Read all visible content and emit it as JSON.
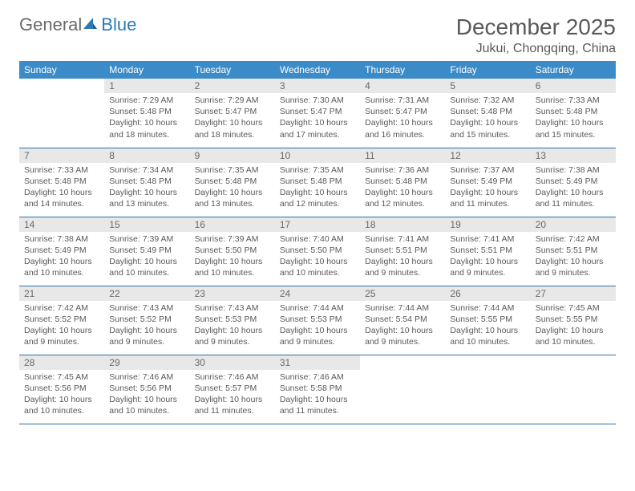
{
  "logo": {
    "part1": "General",
    "part2": "Blue"
  },
  "title": "December 2025",
  "location": "Jukui, Chongqing, China",
  "weekdays": [
    "Sunday",
    "Monday",
    "Tuesday",
    "Wednesday",
    "Thursday",
    "Friday",
    "Saturday"
  ],
  "colors": {
    "header_bg": "#3b8bc8",
    "header_text": "#ffffff",
    "daynum_bg": "#e8e8e8",
    "border": "#2a6fa8",
    "text": "#5a5a5a",
    "title": "#595959"
  },
  "weeks": [
    [
      {
        "empty": true
      },
      {
        "num": "1",
        "sunrise": "Sunrise: 7:29 AM",
        "sunset": "Sunset: 5:48 PM",
        "daylight": "Daylight: 10 hours and 18 minutes."
      },
      {
        "num": "2",
        "sunrise": "Sunrise: 7:29 AM",
        "sunset": "Sunset: 5:47 PM",
        "daylight": "Daylight: 10 hours and 18 minutes."
      },
      {
        "num": "3",
        "sunrise": "Sunrise: 7:30 AM",
        "sunset": "Sunset: 5:47 PM",
        "daylight": "Daylight: 10 hours and 17 minutes."
      },
      {
        "num": "4",
        "sunrise": "Sunrise: 7:31 AM",
        "sunset": "Sunset: 5:47 PM",
        "daylight": "Daylight: 10 hours and 16 minutes."
      },
      {
        "num": "5",
        "sunrise": "Sunrise: 7:32 AM",
        "sunset": "Sunset: 5:48 PM",
        "daylight": "Daylight: 10 hours and 15 minutes."
      },
      {
        "num": "6",
        "sunrise": "Sunrise: 7:33 AM",
        "sunset": "Sunset: 5:48 PM",
        "daylight": "Daylight: 10 hours and 15 minutes."
      }
    ],
    [
      {
        "num": "7",
        "sunrise": "Sunrise: 7:33 AM",
        "sunset": "Sunset: 5:48 PM",
        "daylight": "Daylight: 10 hours and 14 minutes."
      },
      {
        "num": "8",
        "sunrise": "Sunrise: 7:34 AM",
        "sunset": "Sunset: 5:48 PM",
        "daylight": "Daylight: 10 hours and 13 minutes."
      },
      {
        "num": "9",
        "sunrise": "Sunrise: 7:35 AM",
        "sunset": "Sunset: 5:48 PM",
        "daylight": "Daylight: 10 hours and 13 minutes."
      },
      {
        "num": "10",
        "sunrise": "Sunrise: 7:35 AM",
        "sunset": "Sunset: 5:48 PM",
        "daylight": "Daylight: 10 hours and 12 minutes."
      },
      {
        "num": "11",
        "sunrise": "Sunrise: 7:36 AM",
        "sunset": "Sunset: 5:48 PM",
        "daylight": "Daylight: 10 hours and 12 minutes."
      },
      {
        "num": "12",
        "sunrise": "Sunrise: 7:37 AM",
        "sunset": "Sunset: 5:49 PM",
        "daylight": "Daylight: 10 hours and 11 minutes."
      },
      {
        "num": "13",
        "sunrise": "Sunrise: 7:38 AM",
        "sunset": "Sunset: 5:49 PM",
        "daylight": "Daylight: 10 hours and 11 minutes."
      }
    ],
    [
      {
        "num": "14",
        "sunrise": "Sunrise: 7:38 AM",
        "sunset": "Sunset: 5:49 PM",
        "daylight": "Daylight: 10 hours and 10 minutes."
      },
      {
        "num": "15",
        "sunrise": "Sunrise: 7:39 AM",
        "sunset": "Sunset: 5:49 PM",
        "daylight": "Daylight: 10 hours and 10 minutes."
      },
      {
        "num": "16",
        "sunrise": "Sunrise: 7:39 AM",
        "sunset": "Sunset: 5:50 PM",
        "daylight": "Daylight: 10 hours and 10 minutes."
      },
      {
        "num": "17",
        "sunrise": "Sunrise: 7:40 AM",
        "sunset": "Sunset: 5:50 PM",
        "daylight": "Daylight: 10 hours and 10 minutes."
      },
      {
        "num": "18",
        "sunrise": "Sunrise: 7:41 AM",
        "sunset": "Sunset: 5:51 PM",
        "daylight": "Daylight: 10 hours and 9 minutes."
      },
      {
        "num": "19",
        "sunrise": "Sunrise: 7:41 AM",
        "sunset": "Sunset: 5:51 PM",
        "daylight": "Daylight: 10 hours and 9 minutes."
      },
      {
        "num": "20",
        "sunrise": "Sunrise: 7:42 AM",
        "sunset": "Sunset: 5:51 PM",
        "daylight": "Daylight: 10 hours and 9 minutes."
      }
    ],
    [
      {
        "num": "21",
        "sunrise": "Sunrise: 7:42 AM",
        "sunset": "Sunset: 5:52 PM",
        "daylight": "Daylight: 10 hours and 9 minutes."
      },
      {
        "num": "22",
        "sunrise": "Sunrise: 7:43 AM",
        "sunset": "Sunset: 5:52 PM",
        "daylight": "Daylight: 10 hours and 9 minutes."
      },
      {
        "num": "23",
        "sunrise": "Sunrise: 7:43 AM",
        "sunset": "Sunset: 5:53 PM",
        "daylight": "Daylight: 10 hours and 9 minutes."
      },
      {
        "num": "24",
        "sunrise": "Sunrise: 7:44 AM",
        "sunset": "Sunset: 5:53 PM",
        "daylight": "Daylight: 10 hours and 9 minutes."
      },
      {
        "num": "25",
        "sunrise": "Sunrise: 7:44 AM",
        "sunset": "Sunset: 5:54 PM",
        "daylight": "Daylight: 10 hours and 9 minutes."
      },
      {
        "num": "26",
        "sunrise": "Sunrise: 7:44 AM",
        "sunset": "Sunset: 5:55 PM",
        "daylight": "Daylight: 10 hours and 10 minutes."
      },
      {
        "num": "27",
        "sunrise": "Sunrise: 7:45 AM",
        "sunset": "Sunset: 5:55 PM",
        "daylight": "Daylight: 10 hours and 10 minutes."
      }
    ],
    [
      {
        "num": "28",
        "sunrise": "Sunrise: 7:45 AM",
        "sunset": "Sunset: 5:56 PM",
        "daylight": "Daylight: 10 hours and 10 minutes."
      },
      {
        "num": "29",
        "sunrise": "Sunrise: 7:46 AM",
        "sunset": "Sunset: 5:56 PM",
        "daylight": "Daylight: 10 hours and 10 minutes."
      },
      {
        "num": "30",
        "sunrise": "Sunrise: 7:46 AM",
        "sunset": "Sunset: 5:57 PM",
        "daylight": "Daylight: 10 hours and 11 minutes."
      },
      {
        "num": "31",
        "sunrise": "Sunrise: 7:46 AM",
        "sunset": "Sunset: 5:58 PM",
        "daylight": "Daylight: 10 hours and 11 minutes."
      },
      {
        "empty": true
      },
      {
        "empty": true
      },
      {
        "empty": true
      }
    ]
  ]
}
